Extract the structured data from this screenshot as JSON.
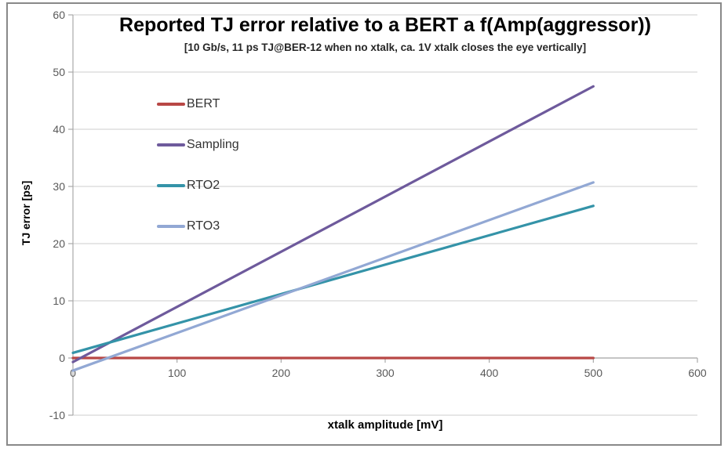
{
  "chart_data": {
    "type": "line",
    "title": "Reported TJ error relative to a BERT a f(Amp(aggressor))",
    "subtitle": "[10 Gb/s, 11 ps TJ@BER-12 when no xtalk, ca. 1V xtalk closes the eye vertically]",
    "xlabel": "xtalk amplitude [mV]",
    "ylabel": "TJ error [ps]",
    "xlim": [
      0,
      600
    ],
    "ylim": [
      -10,
      60
    ],
    "x_ticks": [
      0,
      100,
      200,
      300,
      400,
      500,
      600
    ],
    "y_ticks": [
      -10,
      0,
      10,
      20,
      30,
      40,
      50,
      60
    ],
    "grid": "horizontal",
    "legend_position": "inside-top-left",
    "series": [
      {
        "name": "BERT",
        "color": "#B84745",
        "points": [
          [
            0,
            0
          ],
          [
            500,
            0
          ]
        ]
      },
      {
        "name": "Sampling",
        "color": "#6E5A9C",
        "points": [
          [
            0,
            -0.7
          ],
          [
            500,
            47.5
          ]
        ]
      },
      {
        "name": "RTO2",
        "color": "#3493A8",
        "points": [
          [
            0,
            0.9
          ],
          [
            500,
            26.6
          ]
        ]
      },
      {
        "name": "RTO3",
        "color": "#92A8D4",
        "points": [
          [
            0,
            -2.2
          ],
          [
            500,
            30.7
          ]
        ]
      }
    ],
    "colors": {
      "gridline": "#D6D6D6",
      "axis": "#A9A9A9",
      "tick_label": "#595959",
      "frame_border": "#898989"
    }
  }
}
